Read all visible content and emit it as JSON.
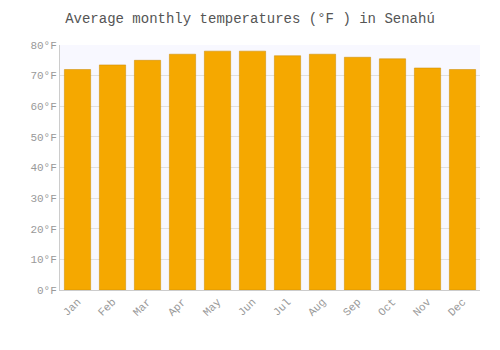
{
  "chart_data": {
    "type": "bar",
    "title": "Average monthly temperatures (°F ) in Senahú",
    "categories": [
      "Jan",
      "Feb",
      "Mar",
      "Apr",
      "May",
      "Jun",
      "Jul",
      "Aug",
      "Sep",
      "Oct",
      "Nov",
      "Dec"
    ],
    "values": [
      72.0,
      73.5,
      75.0,
      77.0,
      78.0,
      78.0,
      76.5,
      77.0,
      76.0,
      75.5,
      72.5,
      72.0
    ],
    "color": "#F5A800",
    "ylim": [
      0,
      80
    ],
    "yticks": [
      {
        "value": 0,
        "label": "0°F"
      },
      {
        "value": 10,
        "label": "10°F"
      },
      {
        "value": 20,
        "label": "20°F"
      },
      {
        "value": 30,
        "label": "30°F"
      },
      {
        "value": 40,
        "label": "40°F"
      },
      {
        "value": 50,
        "label": "50°F"
      },
      {
        "value": 60,
        "label": "60°F"
      },
      {
        "value": 70,
        "label": "70°F"
      },
      {
        "value": 80,
        "label": "80°F"
      }
    ],
    "grid": true
  }
}
